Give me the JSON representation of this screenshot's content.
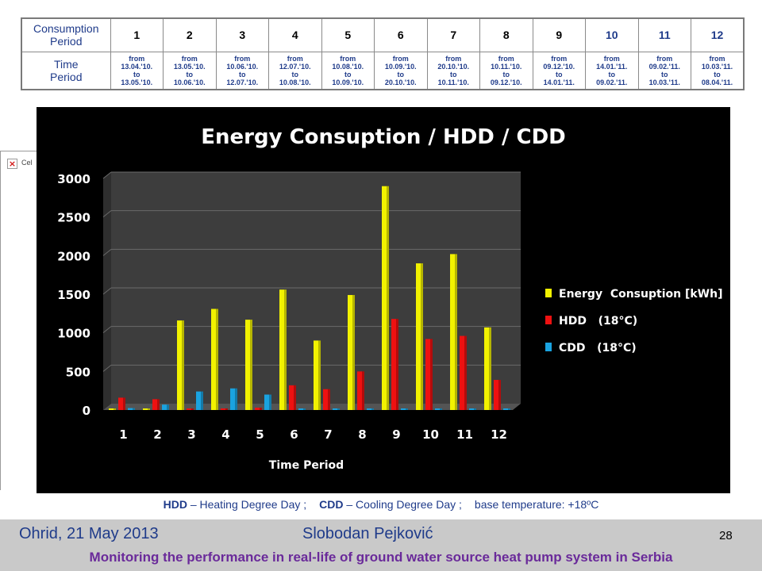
{
  "table": {
    "row1_label": [
      "Consumption",
      "Period"
    ],
    "row2_label": [
      "Time",
      "Period"
    ],
    "periods": [
      "1",
      "2",
      "3",
      "4",
      "5",
      "6",
      "7",
      "8",
      "9",
      "10",
      "11",
      "12"
    ],
    "ranges": [
      {
        "from": "from",
        "start": "13.04.'10.",
        "to": "to",
        "end": "13.05.'10."
      },
      {
        "from": "from",
        "start": "13.05.'10.",
        "to": "to",
        "end": "10.06.'10."
      },
      {
        "from": "from",
        "start": "10.06.'10.",
        "to": "to",
        "end": "12.07.'10."
      },
      {
        "from": "from",
        "start": "12.07.'10.",
        "to": "to",
        "end": "10.08.'10."
      },
      {
        "from": "from",
        "start": "10.08.'10.",
        "to": "to",
        "end": "10.09.'10."
      },
      {
        "from": "from",
        "start": "10.09.'10.",
        "to": "to",
        "end": "20.10.'10."
      },
      {
        "from": "from",
        "start": "20.10.'10.",
        "to": "to",
        "end": "10.11.'10."
      },
      {
        "from": "from",
        "start": "10.11.'10.",
        "to": "to",
        "end": "09.12.'10."
      },
      {
        "from": "from",
        "start": "09.12.'10.",
        "to": "to",
        "end": "14.01.'11."
      },
      {
        "from": "from",
        "start": "14.01.'11.",
        "to": "to",
        "end": "09.02.'11."
      },
      {
        "from": "from",
        "start": "09.02.'11.",
        "to": "to",
        "end": "10.03.'11."
      },
      {
        "from": "from",
        "start": "10.03.'11.",
        "to": "to",
        "end": "08.04.'11."
      }
    ]
  },
  "sliver": {
    "text": "Cel"
  },
  "chart_data": {
    "type": "bar",
    "title": "Energy Consuption / HDD / CDD",
    "xlabel": "Time Period",
    "ylabel": "",
    "categories": [
      "1",
      "2",
      "3",
      "4",
      "5",
      "6",
      "7",
      "8",
      "9",
      "10",
      "11",
      "12"
    ],
    "yticks": [
      "0",
      "500",
      "1000",
      "1500",
      "2000",
      "2500",
      "3000"
    ],
    "ylim": [
      0,
      3000
    ],
    "legend_position": "right",
    "series": [
      {
        "name": "Energy  Consuption [kWh]",
        "color": "#f2f200",
        "values": [
          15,
          15,
          1160,
          1310,
          1170,
          1560,
          900,
          1490,
          2900,
          1900,
          2020,
          1070
        ]
      },
      {
        "name": "HDD   (18°C)",
        "color": "#ee1111",
        "values": [
          160,
          140,
          0,
          0,
          30,
          320,
          270,
          500,
          1180,
          920,
          960,
          390
        ]
      },
      {
        "name": "CDD   (18°C)",
        "color": "#1aa3e0",
        "values": [
          25,
          70,
          240,
          280,
          200,
          20,
          0,
          0,
          0,
          0,
          0,
          0
        ]
      }
    ]
  },
  "caption": {
    "hdd_abbr": "HDD",
    "hdd_text": " – Heating Degree Day ;",
    "cdd_abbr": "CDD",
    "cdd_text": " – Cooling Degree Day ;",
    "base_text": "base temperature: +18ºC"
  },
  "footer": {
    "place_date": "Ohrid, 21 May 2013",
    "author": "Slobodan Pejković",
    "page": "28",
    "title": "Monitoring the performance in real-life of ground water source heat pump system in Serbia"
  }
}
